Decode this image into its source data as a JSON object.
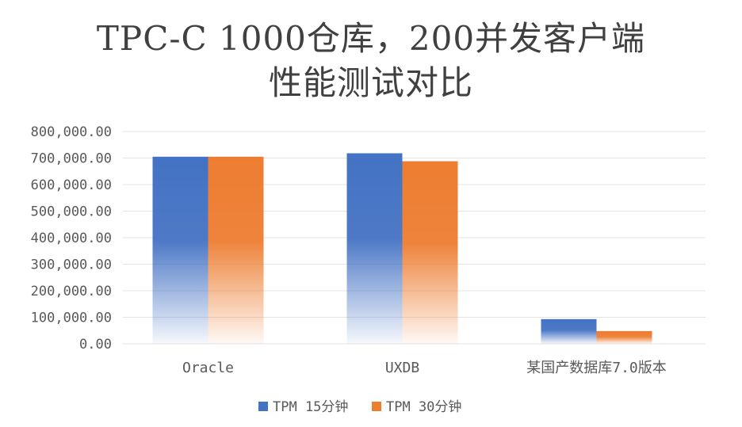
{
  "chart_data": {
    "type": "bar",
    "title": "TPC-C 1000仓库，200并发客户端",
    "subtitle": "性能测试对比",
    "categories": [
      "Oracle",
      "UXDB",
      "某国产数据库7.0版本"
    ],
    "series": [
      {
        "name": "TPM 15分钟",
        "values": [
          705000,
          718000,
          93000
        ],
        "color": "#4472C4"
      },
      {
        "name": "TPM 30分钟",
        "values": [
          705000,
          688000,
          48000
        ],
        "color": "#ED7D31"
      }
    ],
    "ylim": [
      0,
      800000
    ],
    "yticks": [
      0,
      100000,
      200000,
      300000,
      400000,
      500000,
      600000,
      700000,
      800000
    ],
    "ytick_labels": [
      "0.00",
      "100,000.00",
      "200,000.00",
      "300,000.00",
      "400,000.00",
      "500,000.00",
      "600,000.00",
      "700,000.00",
      "800,000.00"
    ],
    "xlabel": "",
    "ylabel": "",
    "grid": true,
    "legend": "bottom"
  }
}
